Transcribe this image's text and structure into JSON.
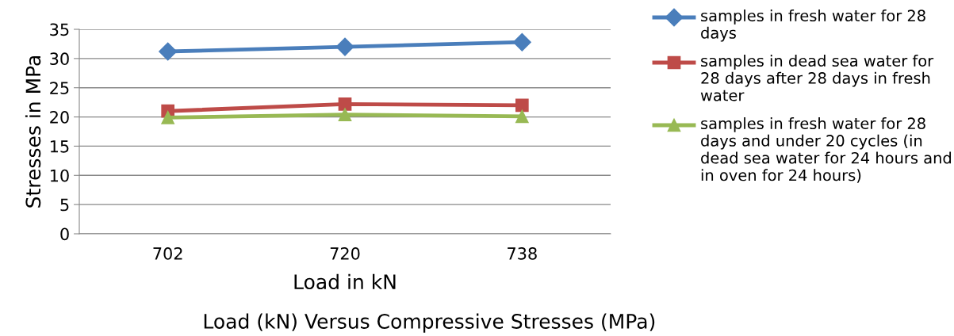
{
  "chart_data": {
    "type": "line",
    "title": "Load (kN) Versus Compressive Stresses (MPa)",
    "xlabel": "Load in kN",
    "ylabel": "Stresses in MPa",
    "categories": [
      "702",
      "720",
      "738"
    ],
    "series": [
      {
        "name": "samples in fresh water for 28 days",
        "color": "#4a7ebb",
        "marker": "diamond",
        "values": [
          31.2,
          32.0,
          32.8
        ]
      },
      {
        "name": "samples in dead sea water for 28 days after 28 days in fresh water",
        "color": "#be4b48",
        "marker": "square",
        "values": [
          21.0,
          22.2,
          22.0
        ]
      },
      {
        "name": "samples in fresh water for 28 days and under 20 cycles (in dead sea water for 24 hours and in oven for 24 hours)",
        "color": "#98b954",
        "marker": "triangle",
        "values": [
          19.9,
          20.4,
          20.1
        ]
      }
    ],
    "ylim": [
      0,
      35
    ],
    "yticks": [
      0,
      5,
      10,
      15,
      20,
      25,
      30,
      35
    ],
    "grid": "y",
    "legend": "right",
    "line_style": "solid"
  }
}
